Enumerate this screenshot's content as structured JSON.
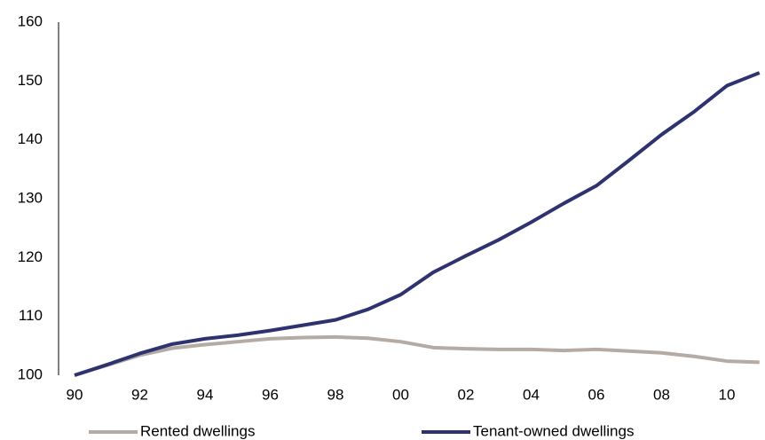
{
  "chart_data": {
    "type": "line",
    "categories": [
      "90",
      null,
      "92",
      null,
      "94",
      null,
      "96",
      null,
      "98",
      null,
      "00",
      null,
      "02",
      null,
      "04",
      null,
      "06",
      null,
      "08",
      null,
      "10",
      null
    ],
    "series": [
      {
        "name": "Rented dwellings",
        "color": "#b4aba4",
        "values": [
          100,
          101.7,
          103.4,
          104.6,
          105.2,
          105.7,
          106.2,
          106.4,
          106.5,
          106.3,
          105.7,
          104.7,
          104.5,
          104.4,
          104.4,
          104.2,
          104.4,
          104.1,
          103.8,
          103.2,
          102.4,
          102.2
        ]
      },
      {
        "name": "Tenant-owned dwellings",
        "color": "#2e3370",
        "values": [
          100,
          101.8,
          103.7,
          105.3,
          106.2,
          106.8,
          107.6,
          108.5,
          109.4,
          111.2,
          113.7,
          117.5,
          120.3,
          123,
          126,
          129.2,
          132.2,
          136.5,
          140.9,
          144.8,
          149.2,
          151.4
        ]
      }
    ],
    "ylim": [
      100,
      160
    ],
    "yticks": [
      100,
      110,
      120,
      130,
      140,
      150,
      160
    ],
    "grid": false
  }
}
